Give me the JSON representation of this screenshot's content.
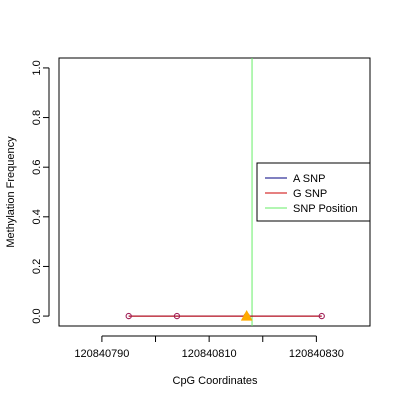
{
  "chart_data": {
    "type": "scatter",
    "title": "",
    "xlabel": "CpG Coordinates",
    "ylabel": "Methylation Frequency",
    "xlim": [
      120840782,
      120840840
    ],
    "ylim": [
      -0.04,
      1.04
    ],
    "x_ticks": [
      120840790,
      120840800,
      120840810,
      120840820,
      120840830
    ],
    "x_tick_labels": [
      "120840790",
      "",
      "120840810",
      "",
      "120840830"
    ],
    "y_ticks": [
      0.0,
      0.2,
      0.4,
      0.6,
      0.8,
      1.0
    ],
    "y_tick_labels": [
      "0.0",
      "0.2",
      "0.4",
      "0.6",
      "0.8",
      "1.0"
    ],
    "grid": false,
    "legend_position": "right",
    "series": [
      {
        "name": "A SNP",
        "color": "#000080",
        "marker": "circle",
        "x": [
          120840795,
          120840804,
          120840817,
          120840831
        ],
        "y": [
          0.0,
          0.0,
          0.0,
          0.0
        ]
      },
      {
        "name": "G SNP",
        "color": "#cc0000",
        "marker": "circle",
        "x": [
          120840795,
          120840804,
          120840817,
          120840831
        ],
        "y": [
          0.0,
          0.0,
          0.0,
          0.0
        ]
      }
    ],
    "snp_position": {
      "name": "SNP Position",
      "color": "#66ee66",
      "x": 120840818
    },
    "highlight_marker": {
      "shape": "triangle",
      "color": "#ffaa00",
      "x": 120840817,
      "y": 0.0
    },
    "legend": [
      {
        "label": "A SNP",
        "color": "#000080"
      },
      {
        "label": "G SNP",
        "color": "#cc0000"
      },
      {
        "label": "SNP Position",
        "color": "#66ee66"
      }
    ]
  }
}
